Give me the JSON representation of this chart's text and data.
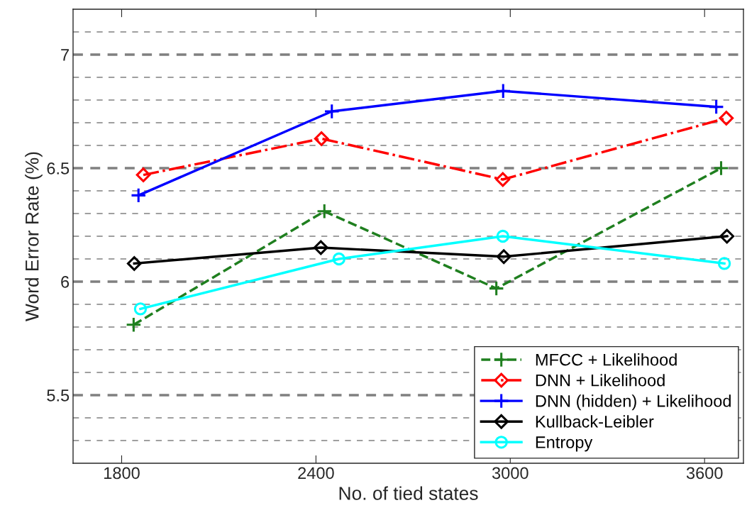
{
  "chart_data": {
    "type": "line",
    "xlabel": "No. of tied states",
    "ylabel": "Word Error Rate (%)",
    "xlim": [
      1650,
      3720
    ],
    "xticks": [
      1800,
      2400,
      3000,
      3600
    ],
    "ylim": [
      5.2,
      7.2
    ],
    "yticks": [
      {
        "value": 5.3,
        "label": null
      },
      {
        "value": 5.4,
        "label": null
      },
      5.5,
      {
        "value": 5.6,
        "label": null
      },
      {
        "value": 5.7,
        "label": null
      },
      {
        "value": 5.8,
        "label": null
      },
      {
        "value": 5.9,
        "label": null
      },
      6,
      {
        "value": 6.1,
        "label": null
      },
      {
        "value": 6.2,
        "label": null
      },
      {
        "value": 6.3,
        "label": null
      },
      {
        "value": 6.4,
        "label": null
      },
      6.5,
      {
        "value": 6.6,
        "label": null
      },
      {
        "value": 6.7,
        "label": null
      },
      {
        "value": 6.8,
        "label": null
      },
      {
        "value": 6.9,
        "label": null
      },
      7,
      {
        "value": 7.1,
        "label": null
      }
    ],
    "grid": "y",
    "legend": "bottom right",
    "series": [
      {
        "name": "MFCC + Likelihood",
        "color": "#1f7f1f",
        "marker": "cross",
        "line_style": "dashed",
        "x": [
          1837,
          2426,
          2957,
          3651
        ],
        "values": [
          5.81,
          6.31,
          5.97,
          6.5
        ]
      },
      {
        "name": "DNN + Likelihood",
        "color": "#ff0000",
        "marker": "diamond",
        "line_style": "dashdot",
        "x": [
          1867,
          2417,
          2977,
          3667
        ],
        "values": [
          6.47,
          6.63,
          6.45,
          6.72
        ]
      },
      {
        "name": "DNN (hidden) + Likelihood",
        "color": "#0000ff",
        "marker": "cross",
        "line_style": "solid",
        "x": [
          1852,
          2449,
          2978,
          3636
        ],
        "values": [
          6.38,
          6.75,
          6.84,
          6.77
        ]
      },
      {
        "name": "Kullback-Leibler",
        "color": "#000000",
        "marker": "diamond",
        "line_style": "solid",
        "x": [
          1839,
          2415,
          2980,
          3669
        ],
        "values": [
          6.08,
          6.15,
          6.11,
          6.2
        ]
      },
      {
        "name": "Entropy",
        "color": "#00ffff",
        "marker": "circle",
        "line_style": "solid",
        "x": [
          1858,
          2471,
          2977,
          3661
        ],
        "values": [
          5.88,
          6.1,
          6.2,
          6.08
        ]
      }
    ]
  }
}
